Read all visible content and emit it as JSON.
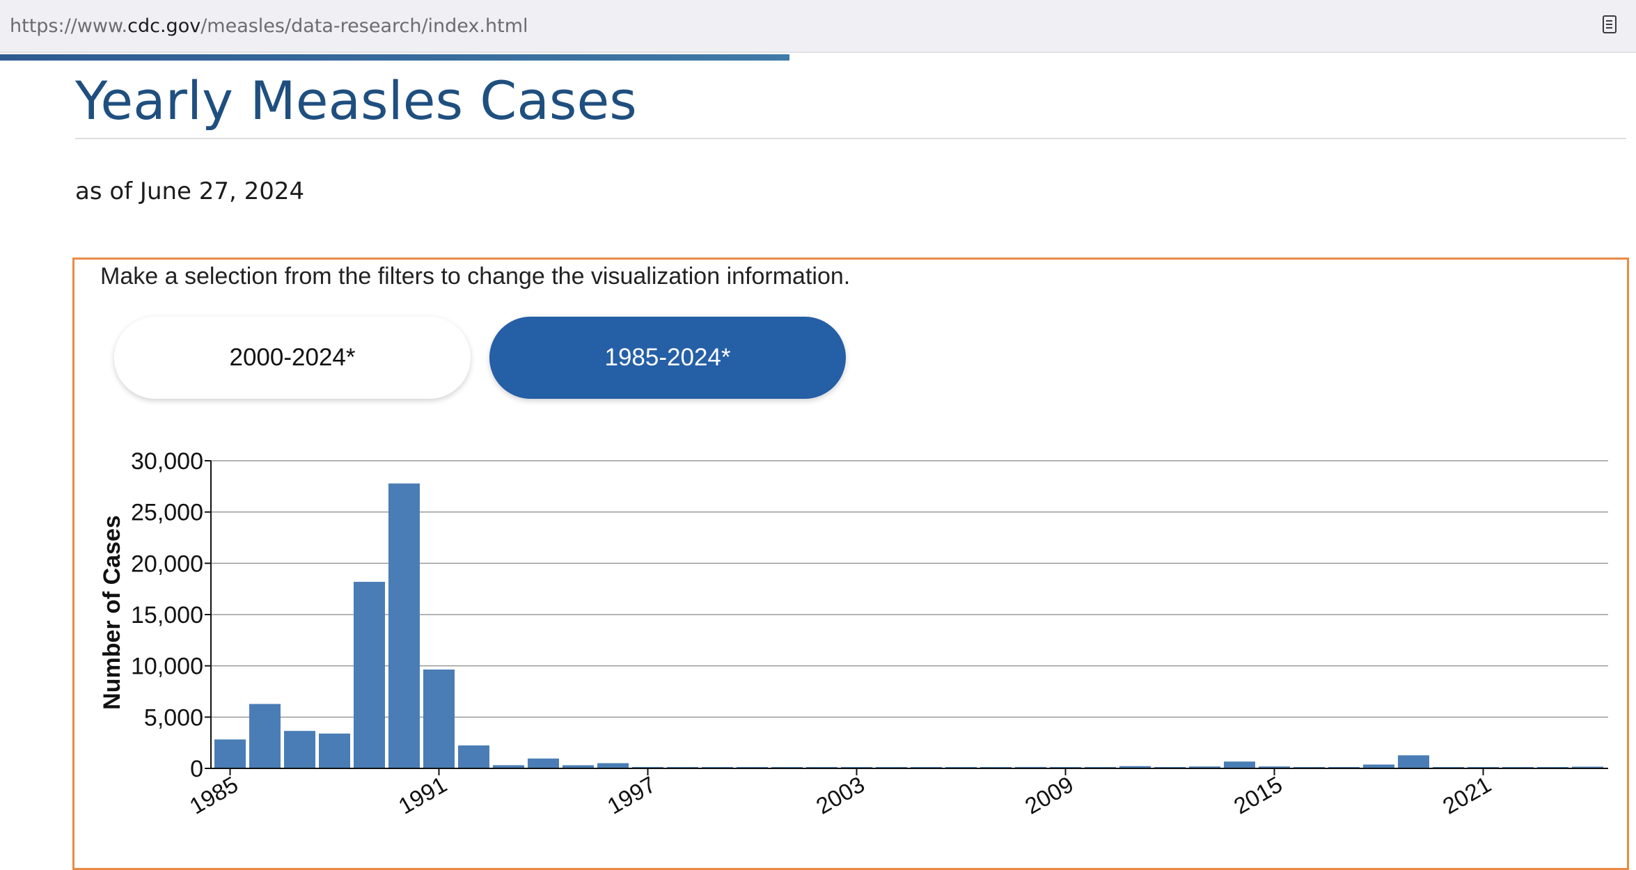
{
  "browser": {
    "url_prefix": "https://www.",
    "url_domain": "cdc.gov",
    "url_path": "/measles/data-research/index.html"
  },
  "page": {
    "title": "Yearly Measles Cases",
    "as_of": "as of June 27, 2024"
  },
  "visualization": {
    "instructions": "Make a selection from the filters to change the visualization information.",
    "filters": [
      {
        "label": "2000-2024*",
        "active": false
      },
      {
        "label": "1985-2024*",
        "active": true
      }
    ]
  },
  "colors": {
    "bar": "#4a7db5",
    "active_button": "#255fa6",
    "box_border": "#e98b44",
    "title": "#1f4f7f"
  },
  "chart_data": {
    "type": "bar",
    "ylabel": "Number of Cases",
    "xlabel": "",
    "ylim": [
      0,
      30000
    ],
    "yticks": [
      0,
      5000,
      10000,
      15000,
      20000,
      25000,
      30000
    ],
    "ytick_labels": [
      "0",
      "5,000",
      "10,000",
      "15,000",
      "20,000",
      "25,000",
      "30,000"
    ],
    "xtick_labels": [
      "1985",
      "1991",
      "1997",
      "2003",
      "2009",
      "2015",
      "2021"
    ],
    "grid": true,
    "categories": [
      "1985",
      "1986",
      "1987",
      "1988",
      "1989",
      "1990",
      "1991",
      "1992",
      "1993",
      "1994",
      "1995",
      "1996",
      "1997",
      "1998",
      "1999",
      "2000",
      "2001",
      "2002",
      "2003",
      "2004",
      "2005",
      "2006",
      "2007",
      "2008",
      "2009",
      "2010",
      "2011",
      "2012",
      "2013",
      "2014",
      "2015",
      "2016",
      "2017",
      "2018",
      "2019",
      "2020",
      "2021",
      "2022",
      "2023",
      "2024"
    ],
    "values": [
      2822,
      6282,
      3655,
      3396,
      18193,
      27786,
      9643,
      2237,
      312,
      963,
      309,
      508,
      138,
      100,
      100,
      86,
      116,
      44,
      56,
      37,
      66,
      55,
      43,
      140,
      71,
      63,
      220,
      55,
      187,
      667,
      188,
      86,
      120,
      375,
      1274,
      13,
      49,
      121,
      59,
      167
    ]
  }
}
